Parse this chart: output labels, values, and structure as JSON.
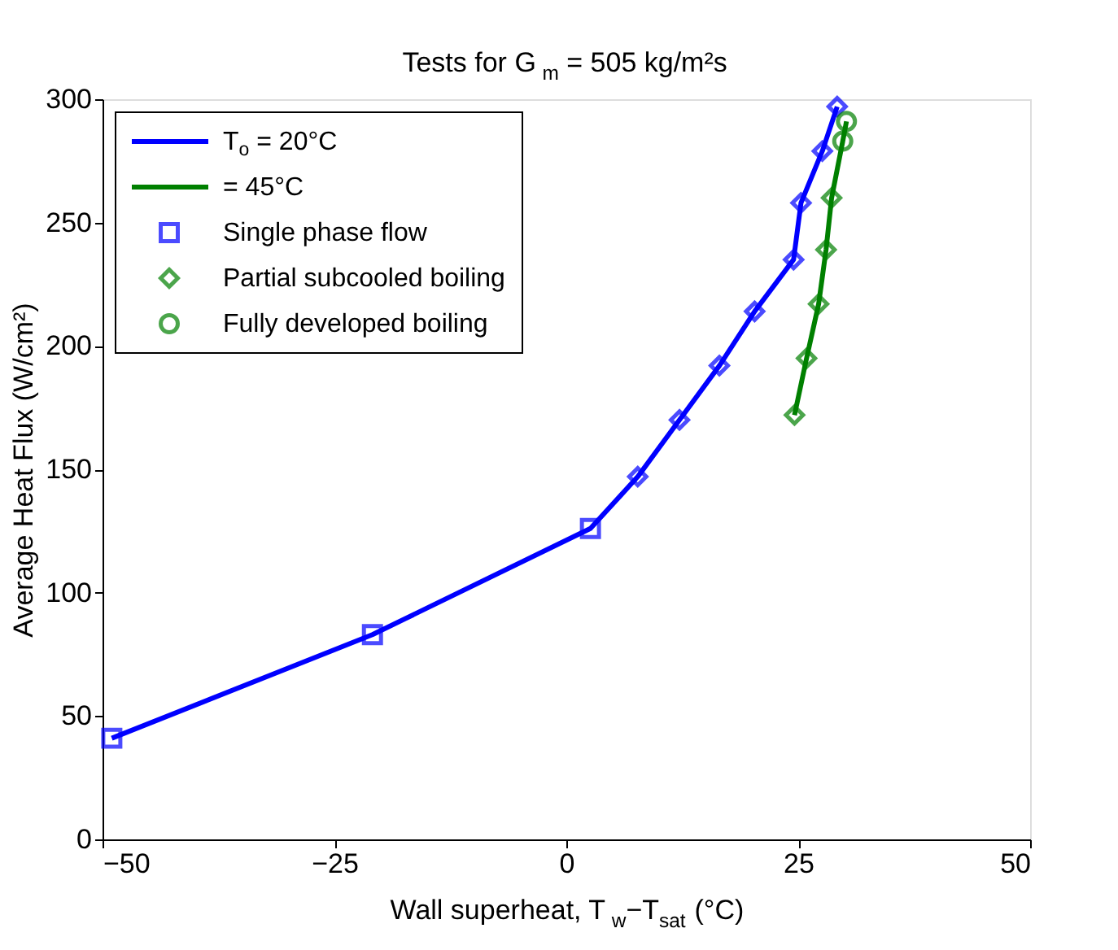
{
  "chart_data": {
    "type": "line",
    "title": "Tests for G$_{m}$ = 505 kg/m²s",
    "xlabel": "Wall superheat, T$_{w}$−T$_{sat}$ (°C)",
    "ylabel": "Average Heat Flux (W/cm²)",
    "xlim": [
      -50,
      50
    ],
    "xticks": [
      -50,
      -25,
      0,
      25,
      50
    ],
    "ylim": [
      0,
      300
    ],
    "yticks": [
      0,
      50,
      100,
      150,
      200,
      250,
      300
    ],
    "grid": false,
    "legend": "top left",
    "series": [
      {
        "name": "T$_{o}$ = 20°C",
        "type": "line",
        "color": "#0000ff",
        "marker": "none",
        "x": [
          -49.0,
          -20.9,
          2.6,
          7.7,
          12.2,
          16.5,
          20.3,
          24.5,
          25.3,
          27.6,
          29.2
        ],
        "values": [
          41,
          83,
          126,
          147,
          170,
          192,
          214,
          235,
          258,
          279,
          297
        ]
      },
      {
        "name": "= 45°C",
        "type": "line",
        "color": "#008000",
        "marker": "none",
        "x": [
          24.6,
          25.9,
          27.2,
          28.0,
          28.6,
          29.8,
          30.2
        ],
        "values": [
          172,
          195,
          217,
          239,
          260,
          283,
          291
        ]
      },
      {
        "name": "Single phase flow",
        "type": "scatter",
        "color": "#0000ff",
        "marker": "square",
        "x": [
          -49.0,
          -20.9,
          2.6
        ],
        "values": [
          41,
          83,
          126
        ]
      },
      {
        "name": "Partial subcooled boiling",
        "type": "scatter",
        "color": "#008000",
        "marker": "diamond",
        "x": [
          7.7,
          12.2,
          16.5,
          20.3,
          24.5,
          25.3,
          27.6,
          29.2,
          24.6,
          25.9,
          27.2,
          28.0,
          28.6
        ],
        "values": [
          147,
          170,
          192,
          214,
          235,
          258,
          279,
          297,
          172,
          195,
          217,
          239,
          260
        ],
        "colors": [
          "#0000ff",
          "#0000ff",
          "#0000ff",
          "#0000ff",
          "#0000ff",
          "#0000ff",
          "#0000ff",
          "#0000ff",
          "#008000",
          "#008000",
          "#008000",
          "#008000",
          "#008000"
        ]
      },
      {
        "name": "Fully developed boiling",
        "type": "scatter",
        "color": "#008000",
        "marker": "circle",
        "x": [
          29.8,
          30.2
        ],
        "values": [
          283,
          291
        ]
      }
    ]
  }
}
